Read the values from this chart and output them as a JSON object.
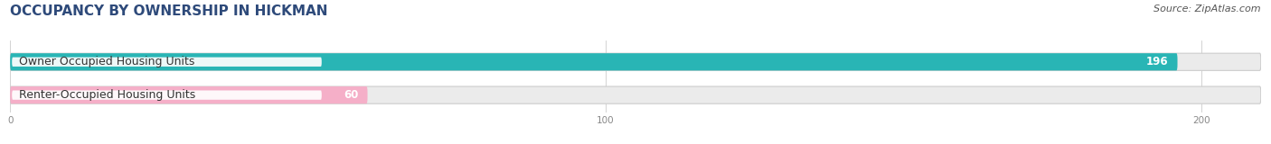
{
  "title": "OCCUPANCY BY OWNERSHIP IN HICKMAN",
  "source": "Source: ZipAtlas.com",
  "categories": [
    "Owner Occupied Housing Units",
    "Renter-Occupied Housing Units"
  ],
  "values": [
    196,
    60
  ],
  "bar_colors": [
    "#29b5b5",
    "#f5afc8"
  ],
  "bar_bg_color": "#ebebeb",
  "xlim": [
    0,
    210
  ],
  "xticks": [
    0,
    100,
    200
  ],
  "title_fontsize": 11,
  "label_fontsize": 9,
  "value_fontsize": 8.5,
  "source_fontsize": 8,
  "bar_height": 0.52,
  "background_color": "#ffffff",
  "title_color": "#2e4a7a",
  "source_color": "#555555",
  "label_text_color": "#333333",
  "value_text_color": "#ffffff",
  "tick_color": "#888888"
}
